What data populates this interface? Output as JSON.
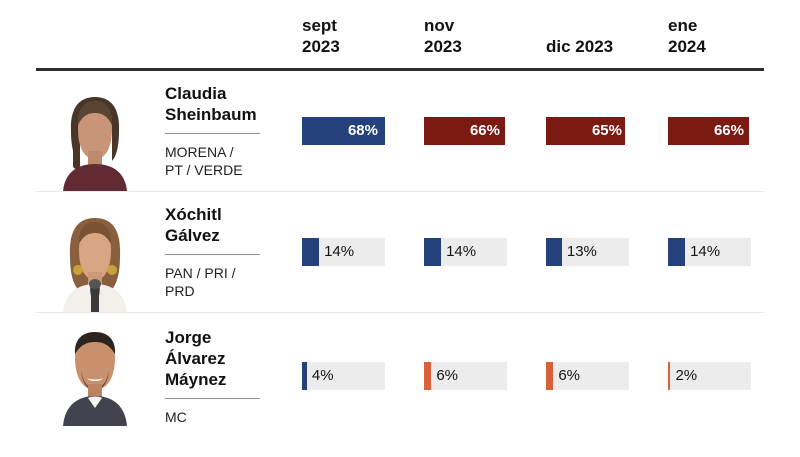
{
  "chart_data": {
    "type": "bar",
    "orientation": "horizontal",
    "title": "",
    "categories": [
      "sept 2023",
      "nov 2023",
      "dic 2023",
      "ene 2024"
    ],
    "series": [
      {
        "name": "Claudia Sheinbaum (MORENA / PT / VERDE)",
        "values": [
          68,
          66,
          65,
          66
        ]
      },
      {
        "name": "Xóchitl Gálvez (PAN / PRI / PRD)",
        "values": [
          14,
          14,
          13,
          14
        ]
      },
      {
        "name": "Jorge Álvarez Máynez (MC)",
        "values": [
          4,
          6,
          6,
          2
        ]
      }
    ],
    "unit": "%",
    "value_range": [
      0,
      68
    ],
    "legend_position": "none",
    "grid": false
  },
  "scale_max": 68,
  "header": {
    "columns": [
      {
        "label": "sept\n2023"
      },
      {
        "label": "nov\n2023"
      },
      {
        "label": "dic 2023"
      },
      {
        "label": "ene\n2024"
      }
    ]
  },
  "candidates": [
    {
      "name": "Claudia Sheinbaum",
      "name_lines": [
        "Claudia",
        "Sheinbaum"
      ],
      "party_lines": [
        "MORENA /",
        "PT / VERDE"
      ],
      "photo_icon": "claudia-sheinbaum-portrait",
      "bar_colors": [
        "#24417c",
        "#7b1a12",
        "#7b1a12",
        "#7b1a12"
      ],
      "label_style": "inside"
    },
    {
      "name": "Xóchitl Gálvez",
      "name_lines": [
        "Xóchitl",
        "Gálvez"
      ],
      "party_lines": [
        "PAN / PRI /",
        "PRD"
      ],
      "photo_icon": "xochitl-galvez-portrait",
      "bar_colors": [
        "#24417c",
        "#24417c",
        "#24417c",
        "#24417c"
      ],
      "label_style": "outside"
    },
    {
      "name": "Jorge Álvarez Máynez",
      "name_lines": [
        "Jorge",
        "Álvarez",
        "Máynez"
      ],
      "party_lines": [
        "MC"
      ],
      "photo_icon": "jorge-alvarez-maynez-portrait",
      "bar_colors": [
        "#24417c",
        "#d9603a",
        "#d9603a",
        "#d9603a"
      ],
      "label_style": "outside"
    }
  ],
  "colors": {
    "navy": "#24417c",
    "maroon": "#7b1a12",
    "orange": "#d9603a",
    "track_gray": "#ececec",
    "top_rule": "#2d2d2d",
    "row_separator": "#e9e9e9"
  }
}
